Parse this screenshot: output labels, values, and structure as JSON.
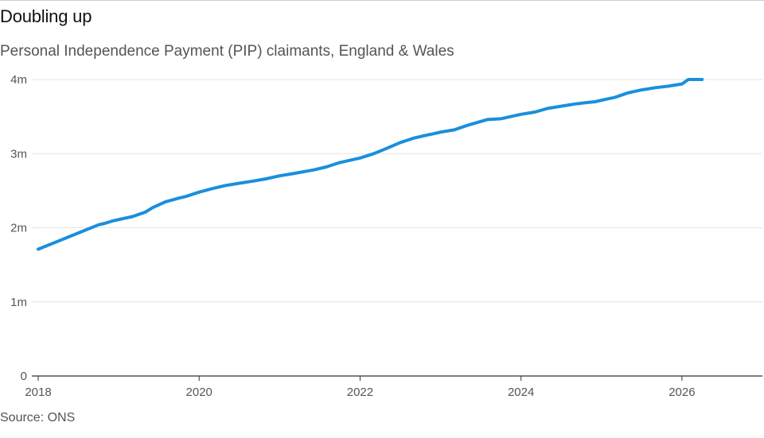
{
  "title": "Doubling up",
  "subtitle": "Personal Independence Payment (PIP) claimants, England & Wales",
  "source": "Source: ONS",
  "colors": {
    "line": "#1a8fdc",
    "grid": "#e3e3e3",
    "axis": "#333333",
    "text": "#555555"
  },
  "chart_data": {
    "type": "line",
    "title": "Doubling up",
    "subtitle": "Personal Independence Payment (PIP) claimants, England & Wales",
    "xlabel": "",
    "ylabel": "",
    "xlim": [
      2018,
      2027
    ],
    "ylim": [
      0,
      4
    ],
    "grid": true,
    "x_ticks": [
      2018,
      2020,
      2022,
      2024,
      2026
    ],
    "x_tick_labels": [
      "2018",
      "2020",
      "2022",
      "2024",
      "2026"
    ],
    "y_ticks": [
      0,
      1,
      2,
      3,
      4
    ],
    "y_tick_labels": [
      "0",
      "1m",
      "2m",
      "3m",
      "4m"
    ],
    "series": [
      {
        "values_unit": "millions",
        "x": [
          2018.0,
          2018.25,
          2018.5,
          2018.75,
          2018.83,
          2018.92,
          2019.0,
          2019.17,
          2019.33,
          2019.42,
          2019.58,
          2019.75,
          2019.83,
          2020.0,
          2020.17,
          2020.33,
          2020.5,
          2020.67,
          2020.83,
          2021.0,
          2021.17,
          2021.42,
          2021.58,
          2021.75,
          2022.0,
          2022.17,
          2022.33,
          2022.5,
          2022.67,
          2022.83,
          2022.92,
          2023.0,
          2023.17,
          2023.33,
          2023.58,
          2023.75,
          2023.83,
          2024.0,
          2024.17,
          2024.33,
          2024.5,
          2024.67,
          2024.83,
          2024.92,
          2025.0,
          2025.17,
          2025.33,
          2025.5,
          2025.67,
          2025.83,
          2026.0,
          2026.08,
          2026.25
        ],
        "values": [
          1.71,
          1.82,
          1.93,
          2.04,
          2.06,
          2.09,
          2.11,
          2.15,
          2.21,
          2.27,
          2.35,
          2.4,
          2.42,
          2.48,
          2.53,
          2.57,
          2.6,
          2.63,
          2.66,
          2.7,
          2.73,
          2.78,
          2.82,
          2.88,
          2.94,
          3.0,
          3.07,
          3.15,
          3.21,
          3.25,
          3.27,
          3.29,
          3.32,
          3.38,
          3.46,
          3.47,
          3.49,
          3.53,
          3.56,
          3.61,
          3.64,
          3.67,
          3.69,
          3.7,
          3.72,
          3.76,
          3.82,
          3.86,
          3.89,
          3.91,
          3.94,
          4.0,
          4.0
        ]
      }
    ]
  }
}
